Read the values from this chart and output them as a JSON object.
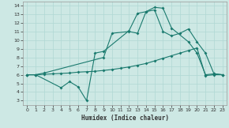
{
  "xlabel": "Humidex (Indice chaleur)",
  "bg_color": "#cde8e4",
  "grid_color": "#b0d8d4",
  "line_color": "#1a7a6e",
  "xlim": [
    -0.5,
    23.5
  ],
  "ylim": [
    2.5,
    14.5
  ],
  "xticks": [
    0,
    1,
    2,
    3,
    4,
    5,
    6,
    7,
    8,
    9,
    10,
    11,
    12,
    13,
    14,
    15,
    16,
    17,
    18,
    19,
    20,
    21,
    22,
    23
  ],
  "yticks": [
    3,
    4,
    5,
    6,
    7,
    8,
    9,
    10,
    11,
    12,
    13,
    14
  ],
  "line1_x": [
    0,
    1,
    4,
    5,
    6,
    7,
    8,
    9,
    12,
    13,
    14,
    15,
    16,
    17,
    19,
    20,
    21,
    22,
    23
  ],
  "line1_y": [
    6,
    6,
    4.5,
    5.2,
    4.6,
    3.0,
    8.5,
    8.7,
    11.1,
    13.1,
    13.3,
    13.8,
    13.7,
    11.4,
    9.8,
    8.5,
    6.0,
    6.1,
    6.0
  ],
  "line2_x": [
    0,
    1,
    2,
    9,
    10,
    12,
    13,
    14,
    15,
    16,
    17,
    18,
    19,
    20,
    21,
    22,
    23
  ],
  "line2_y": [
    6,
    6,
    6.2,
    8.0,
    10.8,
    11.0,
    10.8,
    13.3,
    13.5,
    11.0,
    10.5,
    10.8,
    11.3,
    9.8,
    8.5,
    6.1,
    6.0
  ],
  "line3_x": [
    0,
    1,
    2,
    3,
    4,
    5,
    6,
    7,
    8,
    9,
    10,
    11,
    12,
    13,
    14,
    15,
    16,
    17,
    18,
    19,
    20,
    21,
    22,
    23
  ],
  "line3_y": [
    6,
    6,
    6.05,
    6.1,
    6.15,
    6.2,
    6.3,
    6.35,
    6.4,
    6.5,
    6.6,
    6.75,
    6.9,
    7.1,
    7.3,
    7.6,
    7.9,
    8.2,
    8.5,
    8.8,
    9.1,
    5.9,
    6.0,
    6.0
  ]
}
